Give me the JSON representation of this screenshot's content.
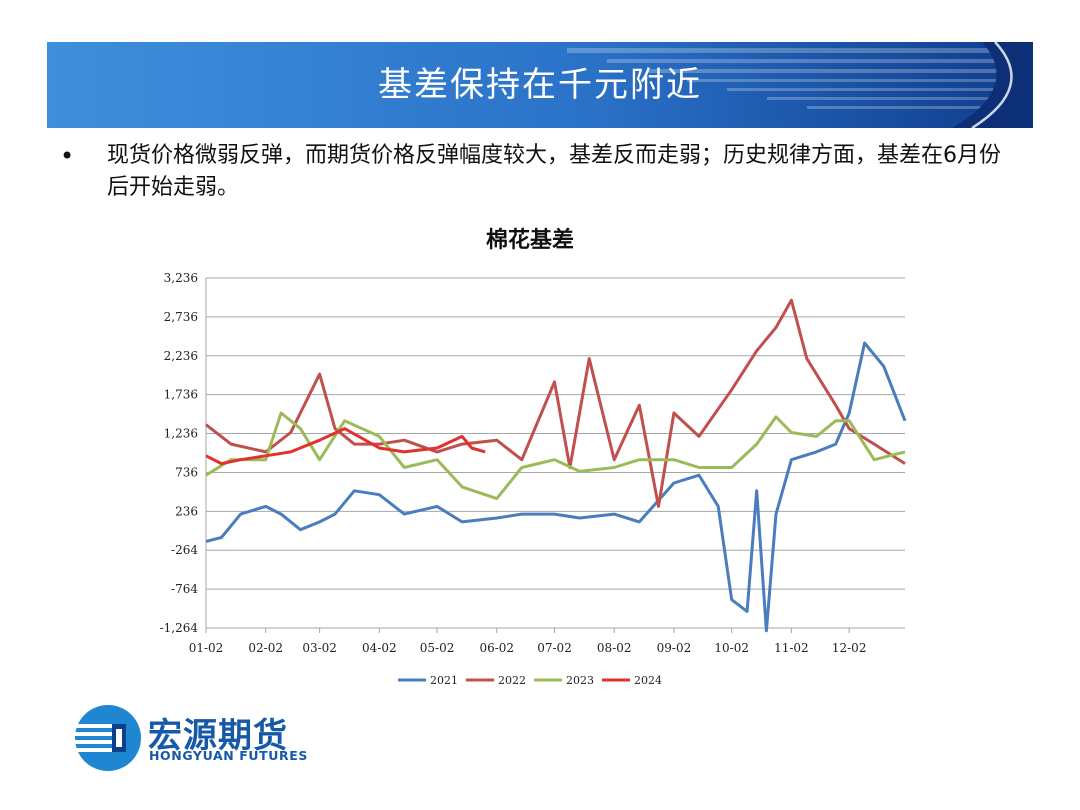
{
  "slide": {
    "title": "基差保持在千元附近",
    "bullet": "现货价格微弱反弹，而期货价格反弹幅度较大，基差反而走弱；历史规律方面，基差在6月份后开始走弱。",
    "bullet_marker": "•"
  },
  "logo": {
    "name_cn": "宏源期货",
    "name_en": "HONGYUAN FUTURES"
  },
  "colors": {
    "banner_dark": "#0f3c8c",
    "banner_light": "#2f7fd0",
    "text": "#111111"
  },
  "chart_data": {
    "type": "line",
    "title": "棉花基差",
    "xlabel": "",
    "ylabel": "",
    "ylim": [
      -1264,
      3236
    ],
    "yticks": [
      -1264,
      -764,
      -264,
      236,
      736,
      1236,
      1736,
      2236,
      2736,
      3236
    ],
    "ytick_labels": [
      "-1,264",
      "-764",
      "-264",
      "236",
      "736",
      "1,236",
      "1,736",
      "2,236",
      "2,736",
      "3,236"
    ],
    "xticks": [
      "01-02",
      "02-02",
      "03-02",
      "04-02",
      "05-02",
      "06-02",
      "07-02",
      "08-02",
      "09-02",
      "10-02",
      "11-02",
      "12-02"
    ],
    "x_axis_note": "day of year, month-day",
    "grid": "horizontal",
    "legend_position": "bottom",
    "series": [
      {
        "name": "2021",
        "color": "#4a7dbe",
        "points": [
          [
            "01-02",
            -150
          ],
          [
            "01-10",
            -100
          ],
          [
            "01-20",
            200
          ],
          [
            "02-02",
            300
          ],
          [
            "02-10",
            200
          ],
          [
            "02-20",
            0
          ],
          [
            "03-02",
            100
          ],
          [
            "03-10",
            200
          ],
          [
            "03-20",
            500
          ],
          [
            "04-02",
            450
          ],
          [
            "04-15",
            200
          ],
          [
            "05-02",
            300
          ],
          [
            "05-15",
            100
          ],
          [
            "06-02",
            150
          ],
          [
            "06-15",
            200
          ],
          [
            "07-02",
            200
          ],
          [
            "07-15",
            150
          ],
          [
            "08-02",
            200
          ],
          [
            "08-15",
            100
          ],
          [
            "09-02",
            600
          ],
          [
            "09-15",
            700
          ],
          [
            "09-25",
            300
          ],
          [
            "10-02",
            -900
          ],
          [
            "10-10",
            -1050
          ],
          [
            "10-15",
            500
          ],
          [
            "10-20",
            -1300
          ],
          [
            "10-25",
            200
          ],
          [
            "11-02",
            900
          ],
          [
            "11-15",
            1000
          ],
          [
            "11-25",
            1100
          ],
          [
            "12-02",
            1500
          ],
          [
            "12-10",
            2400
          ],
          [
            "12-20",
            2100
          ],
          [
            "12-31",
            1400
          ]
        ]
      },
      {
        "name": "2022",
        "color": "#c0504d",
        "points": [
          [
            "01-02",
            1350
          ],
          [
            "01-15",
            1100
          ],
          [
            "02-02",
            1000
          ],
          [
            "02-15",
            1250
          ],
          [
            "03-02",
            2000
          ],
          [
            "03-10",
            1300
          ],
          [
            "03-20",
            1100
          ],
          [
            "04-02",
            1100
          ],
          [
            "04-15",
            1150
          ],
          [
            "05-02",
            1000
          ],
          [
            "05-15",
            1100
          ],
          [
            "06-02",
            1150
          ],
          [
            "06-15",
            900
          ],
          [
            "07-02",
            1900
          ],
          [
            "07-10",
            800
          ],
          [
            "07-20",
            2200
          ],
          [
            "08-02",
            900
          ],
          [
            "08-15",
            1600
          ],
          [
            "08-25",
            300
          ],
          [
            "09-02",
            1500
          ],
          [
            "09-15",
            1200
          ],
          [
            "10-02",
            1800
          ],
          [
            "10-15",
            2300
          ],
          [
            "10-25",
            2600
          ],
          [
            "11-02",
            2950
          ],
          [
            "11-10",
            2200
          ],
          [
            "11-25",
            1600
          ],
          [
            "12-02",
            1300
          ],
          [
            "12-15",
            1100
          ],
          [
            "12-31",
            850
          ]
        ]
      },
      {
        "name": "2023",
        "color": "#9bbb59",
        "points": [
          [
            "01-02",
            700
          ],
          [
            "01-15",
            900
          ],
          [
            "02-02",
            900
          ],
          [
            "02-10",
            1500
          ],
          [
            "02-20",
            1300
          ],
          [
            "03-02",
            900
          ],
          [
            "03-15",
            1400
          ],
          [
            "04-02",
            1200
          ],
          [
            "04-15",
            800
          ],
          [
            "05-02",
            900
          ],
          [
            "05-15",
            550
          ],
          [
            "06-02",
            400
          ],
          [
            "06-15",
            800
          ],
          [
            "07-02",
            900
          ],
          [
            "07-15",
            750
          ],
          [
            "08-02",
            800
          ],
          [
            "08-15",
            900
          ],
          [
            "09-02",
            900
          ],
          [
            "09-15",
            800
          ],
          [
            "10-02",
            800
          ],
          [
            "10-15",
            1100
          ],
          [
            "10-25",
            1450
          ],
          [
            "11-02",
            1250
          ],
          [
            "11-15",
            1200
          ],
          [
            "11-25",
            1400
          ],
          [
            "12-02",
            1400
          ],
          [
            "12-15",
            900
          ],
          [
            "12-31",
            1000
          ]
        ]
      },
      {
        "name": "2024",
        "color": "#e0312d",
        "points": [
          [
            "01-02",
            950
          ],
          [
            "01-10",
            850
          ],
          [
            "01-20",
            900
          ],
          [
            "02-02",
            950
          ],
          [
            "02-15",
            1000
          ],
          [
            "03-02",
            1150
          ],
          [
            "03-15",
            1300
          ],
          [
            "04-02",
            1050
          ],
          [
            "04-15",
            1000
          ],
          [
            "05-02",
            1050
          ],
          [
            "05-15",
            1200
          ],
          [
            "05-20",
            1050
          ],
          [
            "05-27",
            1000
          ]
        ]
      }
    ]
  }
}
